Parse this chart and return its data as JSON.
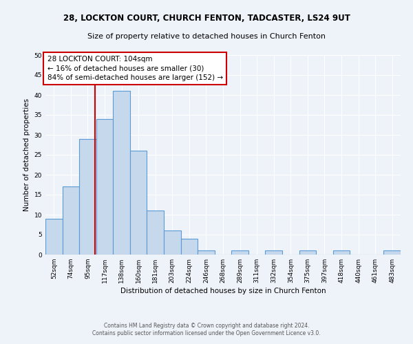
{
  "title1": "28, LOCKTON COURT, CHURCH FENTON, TADCASTER, LS24 9UT",
  "title2": "Size of property relative to detached houses in Church Fenton",
  "xlabel": "Distribution of detached houses by size in Church Fenton",
  "ylabel": "Number of detached properties",
  "categories": [
    "52sqm",
    "74sqm",
    "95sqm",
    "117sqm",
    "138sqm",
    "160sqm",
    "181sqm",
    "203sqm",
    "224sqm",
    "246sqm",
    "268sqm",
    "289sqm",
    "311sqm",
    "332sqm",
    "354sqm",
    "375sqm",
    "397sqm",
    "418sqm",
    "440sqm",
    "461sqm",
    "483sqm"
  ],
  "values": [
    9,
    17,
    29,
    34,
    41,
    26,
    11,
    6,
    4,
    1,
    0,
    1,
    0,
    1,
    0,
    1,
    0,
    1,
    0,
    0,
    1
  ],
  "bar_color": "#c5d8ec",
  "bar_edge_color": "#5b9bd5",
  "annotation_text": "28 LOCKTON COURT: 104sqm\n← 16% of detached houses are smaller (30)\n84% of semi-detached houses are larger (152) →",
  "vline_color": "#cc0000",
  "vline_x": 2.41,
  "annotation_box_color": "#ffffff",
  "annotation_box_edge_color": "#cc0000",
  "ylim": [
    0,
    50
  ],
  "yticks": [
    0,
    5,
    10,
    15,
    20,
    25,
    30,
    35,
    40,
    45,
    50
  ],
  "footer1": "Contains HM Land Registry data © Crown copyright and database right 2024.",
  "footer2": "Contains public sector information licensed under the Open Government Licence v3.0.",
  "background_color": "#eef2f9",
  "grid_color": "#ffffff",
  "title1_fontsize": 8.5,
  "title2_fontsize": 8.0,
  "xlabel_fontsize": 7.5,
  "ylabel_fontsize": 7.5,
  "tick_fontsize": 6.5,
  "annotation_fontsize": 7.5,
  "footer_fontsize": 5.5
}
